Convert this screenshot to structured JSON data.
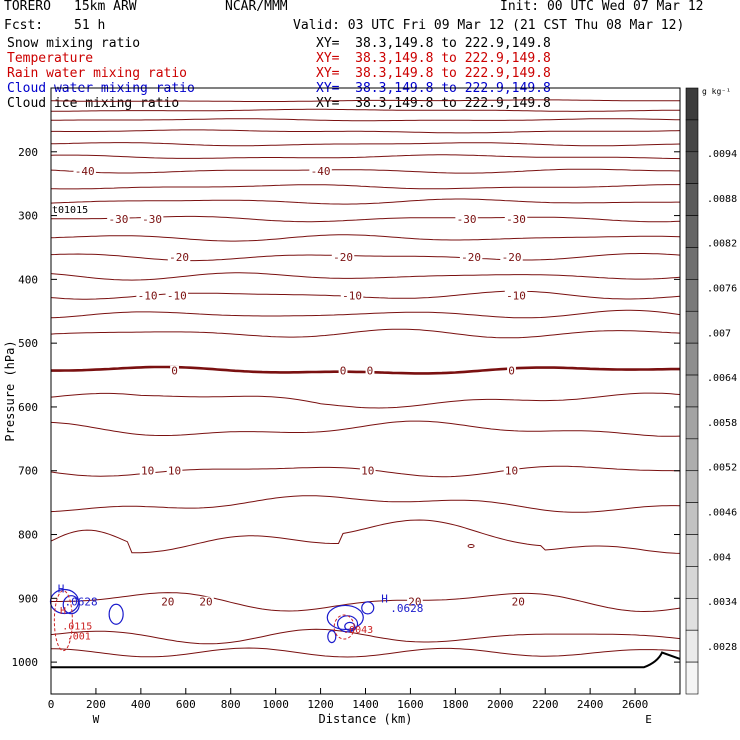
{
  "header": {
    "model": "TORERO",
    "resolution": "15km ARW",
    "center": "NCAR/MMM",
    "init": "Init: 00 UTC Wed 07 Mar 12",
    "fcst_label": "Fcst:",
    "fcst_value": "51 h",
    "valid": "Valid: 03 UTC Fri 09 Mar 12 (21 CST Thu 08 Mar 12)"
  },
  "legend": [
    {
      "label": "Snow mixing ratio",
      "xy": "XY=  38.3,149.8 to 222.9,149.8",
      "color": "#000000"
    },
    {
      "label": "Temperature",
      "xy": "XY=  38.3,149.8 to 222.9,149.8",
      "color": "#cc0000"
    },
    {
      "label": "Rain water mixing ratio",
      "xy": "XY=  38.3,149.8 to 222.9,149.8",
      "color": "#cc0000"
    },
    {
      "label": "Cloud water mixing ratio",
      "xy": "XY=  38.3,149.8 to 222.9,149.8",
      "color": "#0000cc"
    },
    {
      "label": "Cloud ice mixing ratio",
      "xy": "XY=  38.3,149.8 to 222.9,149.8",
      "color": "#000000"
    }
  ],
  "chart_data": {
    "type": "contour",
    "xlabel": "Distance (km)",
    "ylabel": "Pressure (hPa)",
    "xlim": [
      0,
      2800
    ],
    "ylim": [
      1050,
      100
    ],
    "x_ticks": [
      0,
      200,
      400,
      600,
      800,
      1000,
      1200,
      1400,
      1600,
      1800,
      2000,
      2200,
      2400,
      2600
    ],
    "y_ticks": [
      200,
      300,
      400,
      500,
      600,
      700,
      800,
      900,
      1000
    ],
    "x_end_labels": {
      "left": "W",
      "right": "E"
    },
    "small_label": "t01015",
    "temperature_contours": [
      {
        "label": "-40",
        "pressure": 230,
        "label_x": [
          150,
          1200
        ]
      },
      {
        "label": "-30",
        "pressure": 305,
        "label_x": [
          300,
          450,
          1850,
          2070
        ]
      },
      {
        "label": "-20",
        "pressure": 365,
        "label_x": [
          570,
          1300,
          1870,
          2050
        ]
      },
      {
        "label": "-10",
        "pressure": 425,
        "label_x": [
          430,
          560,
          1340,
          2070
        ]
      },
      {
        "label": "0",
        "pressure": 543,
        "label_x": [
          550,
          1300,
          1420,
          2050
        ]
      },
      {
        "label": "10",
        "pressure": 700,
        "label_x": [
          430,
          550,
          1410,
          2050
        ]
      },
      {
        "label": "20",
        "pressure": 905,
        "label_x": [
          520,
          690,
          1620,
          2080
        ]
      }
    ],
    "cloud_water_labels": [
      {
        "text": "H",
        "x": 30,
        "p": 885
      },
      {
        "text": ".0628",
        "x": 60,
        "p": 905
      },
      {
        "text": "H",
        "x": 1470,
        "p": 900
      },
      {
        "text": ".0628",
        "x": 1510,
        "p": 915
      }
    ],
    "rain_labels": [
      {
        "text": "H",
        "x": 40,
        "p": 918
      },
      {
        "text": ".0115",
        "x": 50,
        "p": 943
      },
      {
        "text": ".001",
        "x": 70,
        "p": 958
      },
      {
        "text": ".0043",
        "x": 1300,
        "p": 948
      }
    ],
    "colorbar": {
      "unit": "g kg⁻¹",
      "labels": [
        ".0094",
        ".0088",
        ".0082",
        ".0076",
        ".007",
        ".0064",
        ".0058",
        ".0052",
        ".0046",
        ".004",
        ".0034",
        ".0028"
      ]
    },
    "colors": {
      "temperature": "#7a1010",
      "cloud_water": "#1a1acc",
      "rain": "#cc2222",
      "axis": "#000000"
    }
  }
}
